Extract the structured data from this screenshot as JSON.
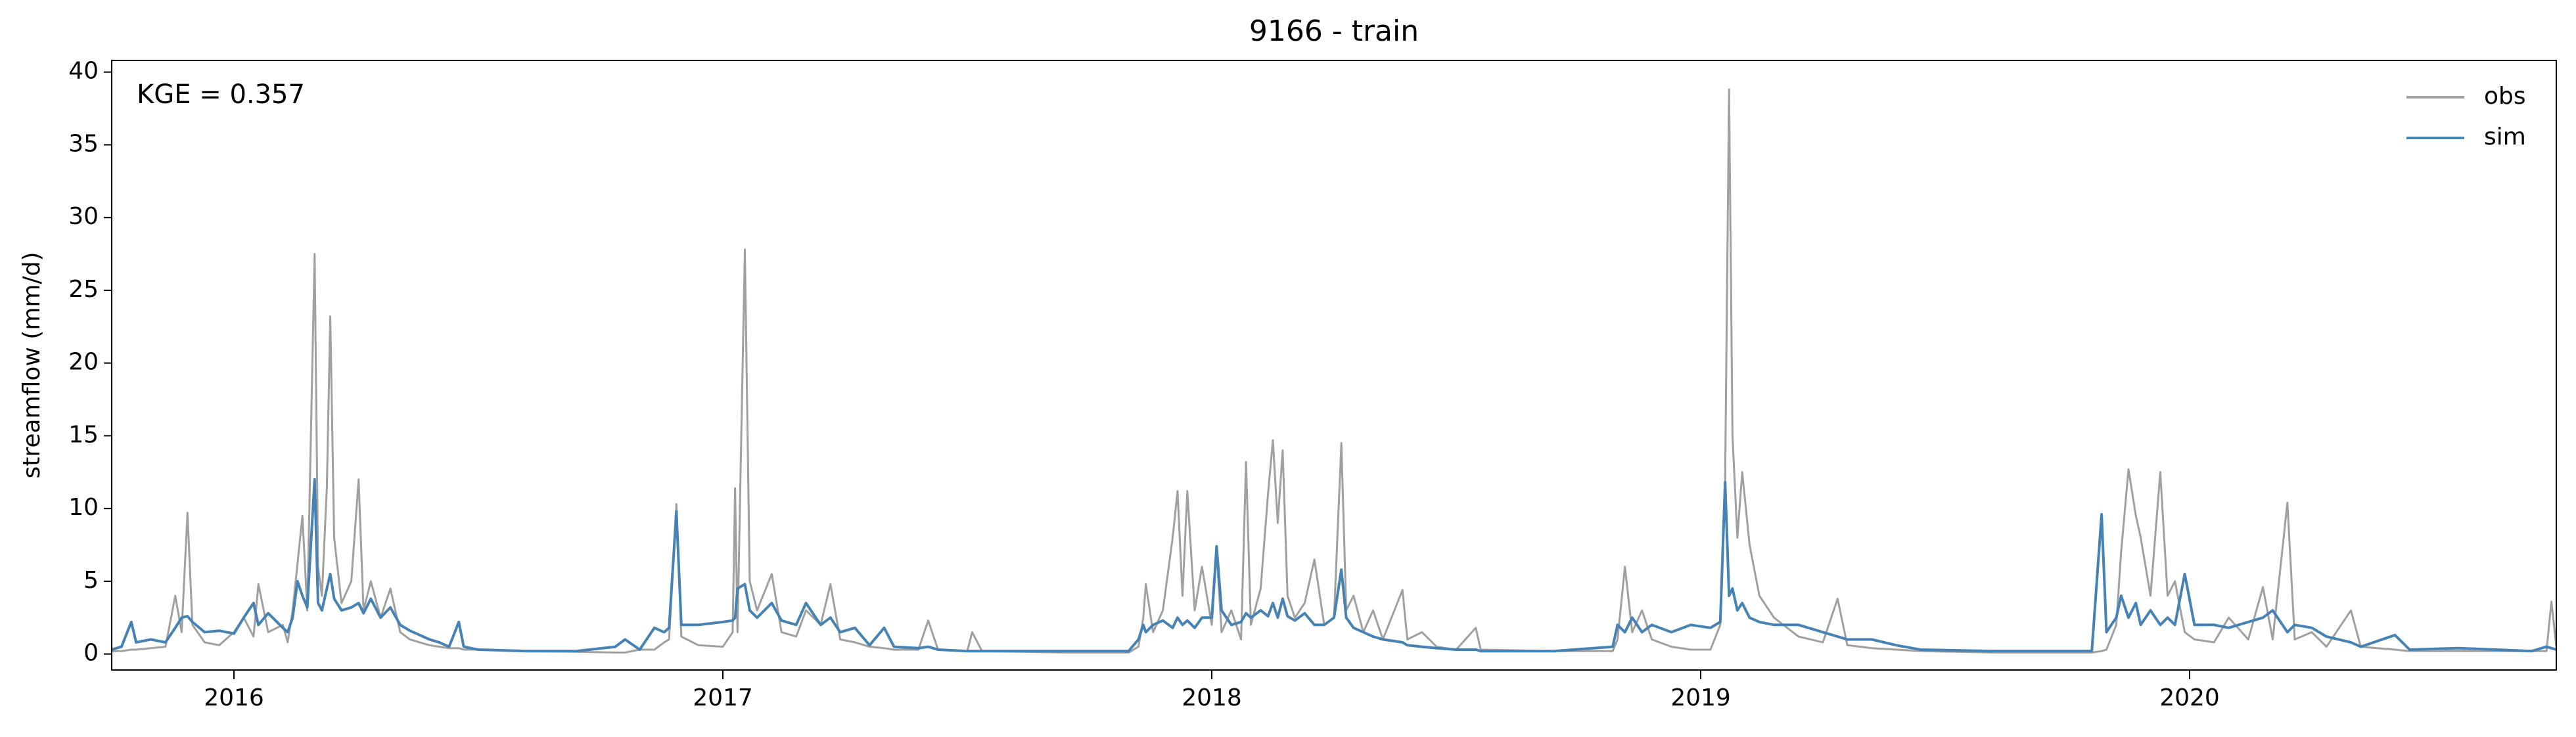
{
  "chart_data": {
    "type": "line",
    "title": "9166 - train",
    "ylabel": "streamflow (mm/d)",
    "annotation": "KGE = 0.357",
    "legend": "upper right",
    "grid": false,
    "xlim": [
      2015.75,
      2020.75
    ],
    "xticks": [
      2016,
      2017,
      2018,
      2019,
      2020
    ],
    "ylim": [
      -1.1,
      40.8
    ],
    "yticks": [
      0,
      5,
      10,
      15,
      20,
      25,
      30,
      35,
      40
    ],
    "x": [
      2015.75,
      2015.77,
      2015.79,
      2015.8,
      2015.83,
      2015.86,
      2015.88,
      2015.893,
      2015.905,
      2015.915,
      2015.94,
      2015.97,
      2016.0,
      2016.02,
      2016.04,
      2016.05,
      2016.07,
      2016.1,
      2016.11,
      2016.12,
      2016.13,
      2016.14,
      2016.15,
      2016.165,
      2016.172,
      2016.18,
      2016.19,
      2016.197,
      2016.205,
      2016.22,
      2016.24,
      2016.255,
      2016.265,
      2016.28,
      2016.3,
      2016.32,
      2016.34,
      2016.36,
      2016.38,
      2016.4,
      2016.42,
      2016.44,
      2016.46,
      2016.47,
      2016.5,
      2016.6,
      2016.7,
      2016.78,
      2016.8,
      2016.83,
      2016.86,
      2016.88,
      2016.89,
      2016.905,
      2016.915,
      2016.95,
      2017.0,
      2017.02,
      2017.025,
      2017.03,
      2017.045,
      2017.055,
      2017.07,
      2017.1,
      2017.12,
      2017.15,
      2017.17,
      2017.2,
      2017.22,
      2017.24,
      2017.27,
      2017.3,
      2017.33,
      2017.35,
      2017.4,
      2017.42,
      2017.44,
      2017.5,
      2017.51,
      2017.53,
      2017.7,
      2017.83,
      2017.85,
      2017.86,
      2017.865,
      2017.88,
      2017.9,
      2017.92,
      2017.93,
      2017.94,
      2017.95,
      2017.965,
      2017.98,
      2018.0,
      2018.01,
      2018.02,
      2018.04,
      2018.06,
      2018.07,
      2018.08,
      2018.1,
      2018.115,
      2018.125,
      2018.135,
      2018.145,
      2018.155,
      2018.17,
      2018.19,
      2018.21,
      2018.23,
      2018.25,
      2018.265,
      2018.275,
      2018.29,
      2018.31,
      2018.33,
      2018.35,
      2018.39,
      2018.4,
      2018.43,
      2018.46,
      2018.5,
      2018.54,
      2018.55,
      2018.7,
      2018.82,
      2018.83,
      2018.845,
      2018.86,
      2018.88,
      2018.9,
      2018.94,
      2018.98,
      2019.02,
      2019.04,
      2019.05,
      2019.058,
      2019.065,
      2019.075,
      2019.085,
      2019.1,
      2019.12,
      2019.15,
      2019.2,
      2019.25,
      2019.28,
      2019.3,
      2019.35,
      2019.4,
      2019.45,
      2019.6,
      2019.8,
      2019.82,
      2019.83,
      2019.85,
      2019.86,
      2019.875,
      2019.89,
      2019.9,
      2019.92,
      2019.94,
      2019.955,
      2019.97,
      2019.99,
      2020.01,
      2020.05,
      2020.08,
      2020.12,
      2020.15,
      2020.17,
      2020.2,
      2020.215,
      2020.25,
      2020.28,
      2020.33,
      2020.35,
      2020.42,
      2020.45,
      2020.55,
      2020.7,
      2020.73,
      2020.74,
      2020.75
    ],
    "series": [
      {
        "name": "obs",
        "color": "#a0a0a0",
        "values": [
          0.2,
          0.2,
          0.3,
          0.3,
          0.4,
          0.5,
          4.0,
          1.5,
          9.7,
          2.0,
          0.8,
          0.6,
          1.5,
          2.5,
          1.2,
          4.8,
          1.5,
          2.0,
          0.8,
          3.0,
          6.2,
          9.5,
          3.0,
          27.5,
          6.0,
          4.0,
          11.5,
          23.2,
          8.0,
          3.5,
          5.0,
          12.0,
          3.0,
          5.0,
          2.5,
          4.5,
          1.5,
          1.0,
          0.8,
          0.6,
          0.5,
          0.4,
          0.4,
          0.3,
          0.3,
          0.2,
          0.15,
          0.1,
          0.1,
          0.3,
          0.3,
          0.8,
          1.0,
          10.3,
          1.2,
          0.6,
          0.5,
          1.5,
          11.4,
          1.5,
          27.8,
          5.0,
          3.0,
          5.5,
          1.5,
          1.2,
          3.0,
          2.0,
          4.8,
          1.0,
          0.8,
          0.5,
          0.4,
          0.3,
          0.3,
          2.3,
          0.3,
          0.2,
          1.5,
          0.2,
          0.1,
          0.1,
          0.5,
          2.5,
          4.8,
          1.5,
          3.0,
          8.0,
          11.2,
          4.0,
          11.2,
          3.0,
          6.0,
          2.0,
          7.0,
          1.5,
          3.0,
          1.0,
          13.2,
          2.0,
          4.5,
          11.0,
          14.7,
          9.0,
          14.0,
          4.0,
          2.5,
          3.5,
          6.5,
          2.0,
          2.5,
          14.5,
          3.0,
          4.0,
          1.5,
          3.0,
          1.0,
          4.4,
          1.0,
          1.5,
          0.5,
          0.3,
          1.8,
          0.3,
          0.2,
          0.2,
          1.0,
          6.0,
          1.5,
          3.0,
          1.0,
          0.5,
          0.3,
          0.3,
          2.0,
          12.0,
          38.8,
          15.0,
          8.0,
          12.5,
          7.5,
          4.0,
          2.5,
          1.2,
          0.8,
          3.8,
          0.6,
          0.4,
          0.3,
          0.2,
          0.1,
          0.1,
          0.2,
          0.3,
          2.0,
          7.0,
          12.7,
          9.5,
          8.0,
          4.0,
          12.5,
          4.0,
          5.0,
          1.5,
          1.0,
          0.8,
          2.5,
          1.0,
          4.6,
          1.0,
          10.4,
          1.0,
          1.5,
          0.5,
          3.0,
          0.5,
          0.3,
          0.2,
          0.2,
          0.2,
          0.2,
          3.6,
          0.5
        ]
      },
      {
        "name": "sim",
        "color": "#4682b4",
        "values": [
          0.3,
          0.5,
          2.2,
          0.8,
          1.0,
          0.8,
          1.8,
          2.5,
          2.6,
          2.2,
          1.5,
          1.6,
          1.4,
          2.5,
          3.5,
          2.0,
          2.8,
          1.8,
          1.5,
          2.5,
          5.0,
          4.0,
          3.2,
          12.0,
          3.5,
          3.0,
          4.5,
          5.5,
          3.8,
          3.0,
          3.2,
          3.5,
          2.8,
          3.8,
          2.5,
          3.2,
          2.0,
          1.6,
          1.3,
          1.0,
          0.8,
          0.5,
          2.2,
          0.5,
          0.3,
          0.2,
          0.2,
          0.5,
          1.0,
          0.3,
          1.8,
          1.5,
          1.8,
          9.8,
          2.0,
          2.0,
          2.2,
          2.3,
          2.5,
          4.5,
          4.8,
          3.0,
          2.5,
          3.5,
          2.3,
          2.0,
          3.5,
          2.0,
          2.5,
          1.5,
          1.8,
          0.6,
          1.8,
          0.5,
          0.4,
          0.5,
          0.3,
          0.2,
          0.2,
          0.2,
          0.2,
          0.2,
          1.0,
          2.0,
          1.5,
          2.0,
          2.3,
          1.8,
          2.5,
          2.0,
          2.3,
          1.8,
          2.5,
          2.5,
          7.4,
          3.0,
          2.0,
          2.2,
          2.8,
          2.5,
          3.0,
          2.6,
          3.5,
          2.5,
          3.8,
          2.6,
          2.3,
          2.8,
          2.0,
          2.0,
          2.5,
          5.8,
          2.5,
          1.8,
          1.5,
          1.2,
          1.0,
          0.8,
          0.6,
          0.5,
          0.4,
          0.3,
          0.3,
          0.2,
          0.2,
          0.5,
          2.0,
          1.5,
          2.5,
          1.5,
          2.0,
          1.5,
          2.0,
          1.8,
          2.2,
          11.8,
          4.0,
          4.5,
          3.0,
          3.5,
          2.5,
          2.2,
          2.0,
          2.0,
          1.5,
          1.2,
          1.0,
          1.0,
          0.6,
          0.3,
          0.2,
          0.2,
          9.6,
          1.5,
          2.5,
          4.0,
          2.5,
          3.5,
          2.0,
          3.0,
          2.0,
          2.5,
          2.0,
          5.5,
          2.0,
          2.0,
          1.8,
          2.2,
          2.5,
          3.0,
          1.5,
          2.0,
          1.8,
          1.2,
          0.8,
          0.5,
          1.3,
          0.3,
          0.4,
          0.2,
          0.5,
          0.4,
          0.3
        ]
      }
    ]
  }
}
